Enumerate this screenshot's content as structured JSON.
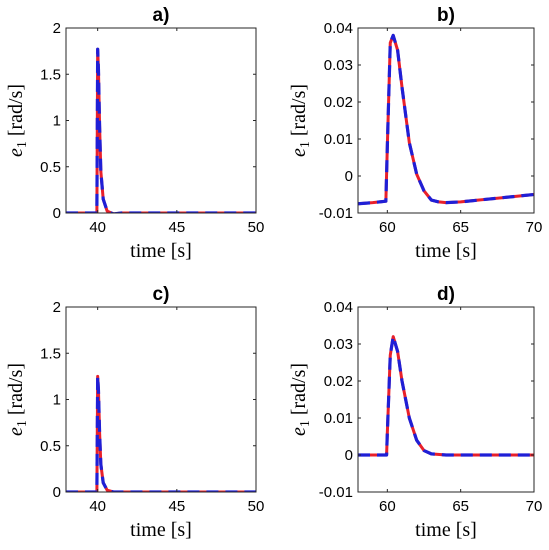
{
  "figure": {
    "background": "#ffffff"
  },
  "colors": {
    "red_series": "#e8202a",
    "blue_series": "#1f1fd6",
    "axis": "#262626"
  },
  "chart_data": [
    {
      "type": "line",
      "title": "a)",
      "xlabel": "time [s]",
      "ylabel": "e_1  [rad/s]",
      "xlim": [
        38,
        50
      ],
      "ylim": [
        0,
        2
      ],
      "xticks": [
        40,
        45,
        50
      ],
      "yticks": [
        0,
        0.5,
        1,
        1.5,
        2
      ],
      "ytick_labels": [
        "0",
        "0.5",
        "1",
        "1.5",
        "2"
      ],
      "grid": false,
      "series": [
        {
          "style": "solid",
          "color": "#e8202a",
          "x": [
            38,
            39.95,
            40.0,
            40.05,
            40.12,
            40.2,
            40.35,
            40.6,
            41.0,
            41.5,
            50
          ],
          "y": [
            0.0,
            0.0,
            1.77,
            1.55,
            0.95,
            0.45,
            0.15,
            0.02,
            -0.01,
            0.0,
            0.0
          ]
        },
        {
          "style": "dashed",
          "color": "#1f1fd6",
          "x": [
            38,
            39.95,
            40.0,
            40.05,
            40.12,
            40.2,
            40.35,
            40.6,
            41.0,
            41.5,
            50
          ],
          "y": [
            0.0,
            0.0,
            1.77,
            1.55,
            0.95,
            0.45,
            0.15,
            0.02,
            -0.01,
            0.0,
            0.0
          ]
        }
      ]
    },
    {
      "type": "line",
      "title": "b)",
      "xlabel": "time [s]",
      "ylabel": "e_1  [rad/s]",
      "xlim": [
        58,
        70
      ],
      "ylim": [
        -0.01,
        0.04
      ],
      "xticks": [
        60,
        65,
        70
      ],
      "yticks": [
        -0.01,
        0,
        0.01,
        0.02,
        0.03,
        0.04
      ],
      "ytick_labels": [
        "-0.01",
        "0",
        "0.01",
        "0.02",
        "0.03",
        "0.04"
      ],
      "grid": false,
      "series": [
        {
          "style": "solid",
          "color": "#e8202a",
          "x": [
            58,
            59,
            59.9,
            60.0,
            60.2,
            60.4,
            60.7,
            61.0,
            61.5,
            62.0,
            62.5,
            63.0,
            63.5,
            64,
            65,
            66,
            67,
            68,
            69,
            70
          ],
          "y": [
            -0.0075,
            -0.0072,
            -0.0068,
            0.008,
            0.036,
            0.038,
            0.034,
            0.024,
            0.009,
            0.0005,
            -0.004,
            -0.0065,
            -0.007,
            -0.0072,
            -0.007,
            -0.0066,
            -0.0062,
            -0.0058,
            -0.0054,
            -0.005
          ]
        },
        {
          "style": "dashed",
          "color": "#1f1fd6",
          "x": [
            58,
            59,
            59.9,
            60.0,
            60.2,
            60.4,
            60.7,
            61.0,
            61.5,
            62.0,
            62.5,
            63.0,
            63.5,
            64,
            65,
            66,
            67,
            68,
            69,
            70
          ],
          "y": [
            -0.0075,
            -0.0072,
            -0.0068,
            0.008,
            0.036,
            0.038,
            0.034,
            0.024,
            0.009,
            0.0005,
            -0.004,
            -0.0065,
            -0.007,
            -0.0072,
            -0.007,
            -0.0066,
            -0.0062,
            -0.0058,
            -0.0054,
            -0.005
          ]
        }
      ]
    },
    {
      "type": "line",
      "title": "c)",
      "xlabel": "time [s]",
      "ylabel": "e_1  [rad/s]",
      "xlim": [
        38,
        50
      ],
      "ylim": [
        0,
        2
      ],
      "xticks": [
        40,
        45,
        50
      ],
      "yticks": [
        0,
        0.5,
        1,
        1.5,
        2
      ],
      "ytick_labels": [
        "0",
        "0.5",
        "1",
        "1.5",
        "2"
      ],
      "grid": false,
      "series": [
        {
          "style": "solid",
          "color": "#e8202a",
          "x": [
            38,
            39.95,
            40.0,
            40.05,
            40.12,
            40.2,
            40.35,
            40.6,
            41.0,
            50
          ],
          "y": [
            0.0,
            0.0,
            1.25,
            1.1,
            0.65,
            0.3,
            0.1,
            0.02,
            0.0,
            0.0
          ]
        },
        {
          "style": "dashed",
          "color": "#1f1fd6",
          "x": [
            38,
            39.95,
            40.0,
            40.05,
            40.12,
            40.2,
            40.35,
            40.6,
            41.0,
            50
          ],
          "y": [
            0.0,
            0.0,
            1.25,
            1.1,
            0.65,
            0.3,
            0.1,
            0.02,
            0.0,
            0.0
          ]
        }
      ]
    },
    {
      "type": "line",
      "title": "d)",
      "xlabel": "time [s]",
      "ylabel": "e_1  [rad/s]",
      "xlim": [
        58,
        70
      ],
      "ylim": [
        -0.01,
        0.04
      ],
      "xticks": [
        60,
        65,
        70
      ],
      "yticks": [
        -0.01,
        0,
        0.01,
        0.02,
        0.03,
        0.04
      ],
      "ytick_labels": [
        "-0.01",
        "0",
        "0.01",
        "0.02",
        "0.03",
        "0.04"
      ],
      "grid": false,
      "series": [
        {
          "style": "solid",
          "color": "#e8202a",
          "x": [
            58,
            59,
            59.95,
            60.0,
            60.2,
            60.4,
            60.7,
            61.0,
            61.5,
            62.0,
            62.5,
            63.0,
            64,
            70
          ],
          "y": [
            0.0,
            0.0,
            0.0,
            0.006,
            0.027,
            0.032,
            0.028,
            0.02,
            0.01,
            0.004,
            0.0012,
            0.0003,
            0.0,
            0.0
          ]
        },
        {
          "style": "dashed",
          "color": "#1f1fd6",
          "x": [
            58,
            59,
            59.95,
            60.0,
            60.2,
            60.4,
            60.7,
            61.0,
            61.5,
            62.0,
            62.5,
            63.0,
            64,
            70
          ],
          "y": [
            0.0,
            0.0,
            0.0,
            0.006,
            0.027,
            0.032,
            0.028,
            0.02,
            0.01,
            0.004,
            0.0012,
            0.0003,
            0.0,
            0.0
          ]
        }
      ]
    }
  ]
}
